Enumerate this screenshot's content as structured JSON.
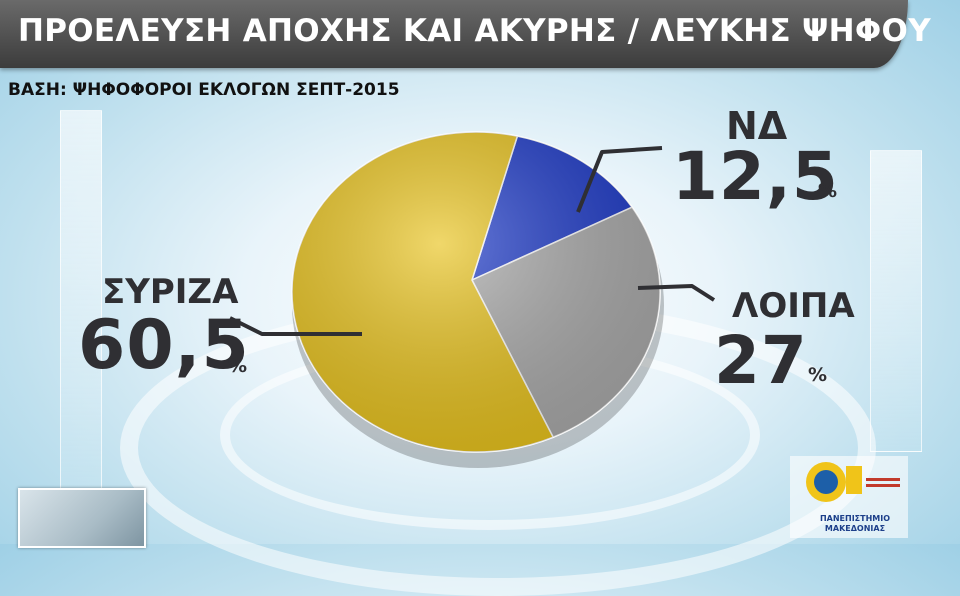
{
  "title": "ΠΡΟΕΛΕΥΣΗ ΑΠΟΧΗΣ ΚΑΙ ΑΚΥΡΗΣ / ΛΕΥΚΗΣ ΨΗΦΟΥ",
  "subtitle": "ΒΑΣΗ: ΨΗΦΟΦΟΡΟΙ ΕΚΛΟΓΩΝ ΣΕΠΤ-2015",
  "logo_text": "ΠΑΝΕΠΙΣΤΗΜΙΟ ΜΑΚΕΔΟΝΙΑΣ",
  "chart_data": {
    "type": "pie",
    "title": "ΠΡΟΕΛΕΥΣΗ ΑΠΟΧΗΣ ΚΑΙ ΑΚΥΡΗΣ / ΛΕΥΚΗΣ ΨΗΦΟΥ",
    "subtitle": "ΒΑΣΗ: ΨΗΦΟΦΟΡΟΙ ΕΚΛΟΓΩΝ ΣΕΠΤ-2015",
    "unit": "%",
    "slices": [
      {
        "label": "ΝΔ",
        "value": 12.5,
        "value_text": "12,5",
        "color": "#1a37c8"
      },
      {
        "label": "ΛΟΙΠΑ",
        "value": 27,
        "value_text": "27",
        "color": "#a9a9a9"
      },
      {
        "label": "ΣΥΡΙΖΑ",
        "value": 60.5,
        "value_text": "60,5",
        "color": "#e8c21a"
      }
    ]
  }
}
